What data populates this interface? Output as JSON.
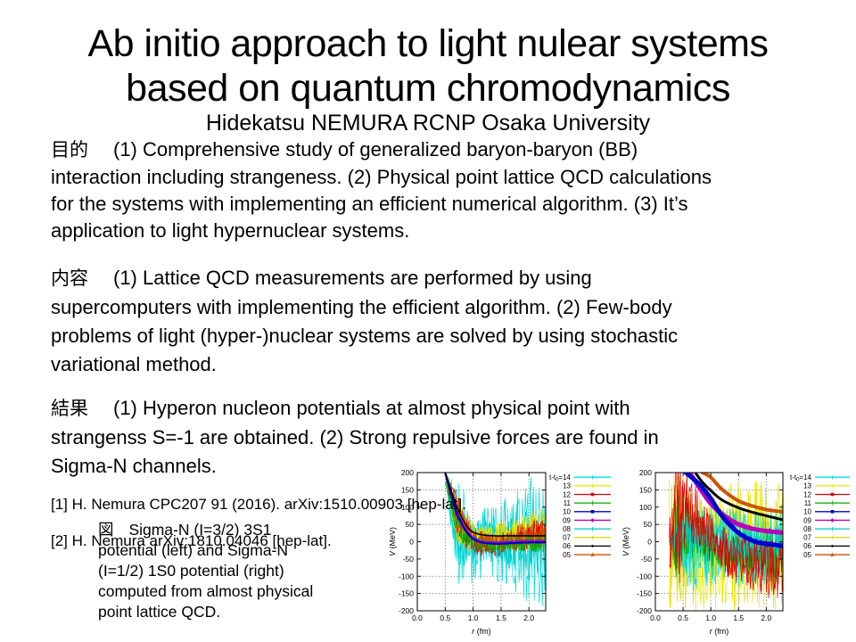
{
  "slide": {
    "title_line1": "Ab initio approach to light nulear systems",
    "title_line2": "based on quantum chromodynamics",
    "author": "Hidekatsu NEMURA RCNP Osaka University",
    "sections": [
      {
        "label": "目的",
        "lines": [
          "(1) Comprehensive study of generalized baryon-baryon (BB)",
          "interaction including strangeness. (2) Physical point lattice QCD calculations",
          "for the systems with implementing an efficient numerical algorithm. (3) It’s",
          "application to light hypernuclear systems."
        ]
      },
      {
        "label": "内容",
        "lines": [
          "(1) Lattice QCD measurements are performed by using",
          "supercomputers with implementing the efficient algorithm. (2) Few-body",
          "problems of light (hyper-)nuclear systems are solved by using stochastic",
          "variational method."
        ]
      },
      {
        "label": "結果",
        "lines": [
          "(1) Hyperon nucleon potentials at almost physical point with",
          "strangenss S=-1 are obtained. (2) Strong repulsive forces are found in",
          "Sigma-N channels."
        ]
      }
    ],
    "references": [
      "[1] H. Nemura CPC207 91 (2016). arXiv:1510.00903 [hep-lat].",
      "[2] H. Nemura arXiv:1810.04046 [hep-lat]."
    ],
    "figure_caption": {
      "label": "図",
      "lines": [
        "Sigma-N (I=3/2) 3S1",
        "potential (left) and Sigma-N",
        "(I=1/2) 1S0 potential (right)",
        "computed from almost physical",
        "point lattice QCD."
      ]
    }
  },
  "chart_data": [
    {
      "type": "line",
      "title": "Sigma-N (I=3/2) 3S1 potential",
      "xlabel": "r (fm)",
      "ylabel": "V (MeV)",
      "xlim": [
        0.0,
        2.3
      ],
      "ylim": [
        -200,
        200
      ],
      "xticks": [
        0.0,
        0.5,
        1.0,
        1.5,
        2.0
      ],
      "yticks": [
        200,
        150,
        100,
        50,
        0,
        -50,
        -100,
        -150,
        -200
      ],
      "grid": true,
      "grid_v": [
        150,
        50,
        -100,
        -150
      ],
      "grid_r": [
        0.5,
        1.0,
        1.5,
        2.0
      ],
      "legend_position": "right-outside",
      "legend": [
        {
          "label": "t-t₀=14",
          "color": "#00dcdc",
          "marker": "plus"
        },
        {
          "label": "13",
          "color": "#e6e600",
          "marker": "plus"
        },
        {
          "label": "12",
          "color": "#dd0000",
          "marker": "square"
        },
        {
          "label": "11",
          "color": "#00aa00",
          "marker": "plus"
        },
        {
          "label": "10",
          "color": "#0000cc",
          "marker": "square"
        },
        {
          "label": "09",
          "color": "#bb00bb",
          "marker": "diamond"
        },
        {
          "label": "08",
          "color": "#00c8c8",
          "marker": "plus"
        },
        {
          "label": "07",
          "color": "#d8d800",
          "marker": "plus"
        },
        {
          "label": "06",
          "color": "#000000",
          "marker": "dot"
        },
        {
          "label": "05",
          "color": "#cc5500",
          "marker": "triangle"
        }
      ],
      "series": [
        {
          "name": "14",
          "color": "#00dcdc",
          "style": "noise",
          "r": [
            0.5,
            0.7,
            0.9,
            1.1,
            1.4,
            1.7,
            2.0,
            2.3
          ],
          "v": [
            200,
            30,
            0,
            -5,
            -5,
            0,
            0,
            0
          ],
          "noise": [
            5,
            160,
            130,
            105,
            105,
            150,
            195,
            195
          ]
        },
        {
          "name": "08",
          "color": "#00c8c8",
          "style": "noise",
          "r": [
            0.5,
            0.7,
            0.9,
            1.1,
            1.4,
            1.7,
            2.0,
            2.3
          ],
          "v": [
            200,
            40,
            5,
            0,
            -5,
            0,
            0,
            0
          ],
          "noise": [
            5,
            110,
            85,
            65,
            55,
            75,
            95,
            95
          ]
        },
        {
          "name": "13",
          "color": "#e6e600",
          "style": "noise",
          "r": [
            0.5,
            0.7,
            0.9,
            1.1,
            1.4,
            1.7,
            2.0,
            2.3
          ],
          "v": [
            200,
            60,
            25,
            15,
            15,
            20,
            30,
            35
          ],
          "noise": [
            5,
            70,
            55,
            45,
            40,
            50,
            60,
            60
          ]
        },
        {
          "name": "07",
          "color": "#d8d800",
          "style": "noise",
          "r": [
            0.5,
            0.7,
            0.9,
            1.1,
            1.4,
            1.7,
            2.0,
            2.3
          ],
          "v": [
            200,
            55,
            20,
            10,
            10,
            15,
            25,
            30
          ],
          "noise": [
            5,
            55,
            42,
            35,
            32,
            38,
            45,
            45
          ]
        },
        {
          "name": "12",
          "color": "#dd0000",
          "style": "noise",
          "r": [
            0.5,
            0.7,
            0.9,
            1.1,
            1.4,
            1.7,
            2.0,
            2.3
          ],
          "v": [
            200,
            80,
            20,
            -5,
            -10,
            0,
            18,
            24
          ],
          "noise": [
            8,
            60,
            45,
            38,
            34,
            38,
            45,
            45
          ]
        },
        {
          "name": "05",
          "color": "#cc5500",
          "style": "noise",
          "r": [
            0.5,
            0.7,
            0.9,
            1.1,
            1.4,
            1.7,
            2.0,
            2.3
          ],
          "v": [
            200,
            95,
            30,
            5,
            0,
            5,
            12,
            15
          ],
          "noise": [
            15,
            40,
            28,
            22,
            20,
            22,
            28,
            28
          ]
        },
        {
          "name": "11",
          "color": "#00aa00",
          "style": "noise",
          "r": [
            0.5,
            0.7,
            0.9,
            1.1,
            1.4,
            1.7,
            2.0,
            2.3
          ],
          "v": [
            180,
            50,
            5,
            -10,
            -12,
            -8,
            -5,
            -5
          ],
          "noise": [
            8,
            38,
            28,
            22,
            20,
            22,
            26,
            26
          ]
        },
        {
          "name": "09",
          "color": "#bb00bb",
          "style": "smooth",
          "lw": 2.2,
          "r": [
            0.5,
            0.7,
            0.9,
            1.1,
            1.4,
            1.7,
            2.0,
            2.3
          ],
          "v": [
            200,
            90,
            28,
            2,
            -2,
            0,
            2,
            2
          ],
          "noise": [
            0,
            6,
            5,
            4,
            3,
            3,
            4,
            4
          ]
        },
        {
          "name": "10",
          "color": "#0000cc",
          "style": "smooth",
          "lw": 2.2,
          "r": [
            0.5,
            0.7,
            0.9,
            1.1,
            1.4,
            1.7,
            2.0,
            2.3
          ],
          "v": [
            200,
            85,
            25,
            0,
            -6,
            -4,
            -2,
            -2
          ],
          "noise": [
            0,
            5,
            4,
            3,
            3,
            3,
            3,
            3
          ]
        },
        {
          "name": "06",
          "color": "#000000",
          "style": "smooth",
          "lw": 1.6,
          "r": [
            0.5,
            0.7,
            0.9,
            1.1,
            1.4,
            1.7,
            2.0,
            2.3
          ],
          "v": [
            200,
            105,
            42,
            22,
            17,
            17,
            17,
            17
          ],
          "noise": [
            0,
            0,
            0,
            0,
            0,
            0,
            0,
            0
          ]
        }
      ]
    },
    {
      "type": "line",
      "title": "Sigma-N (I=1/2) 1S0 potential",
      "xlabel": "r (fm)",
      "ylabel": "V (MeV)",
      "xlim": [
        0.0,
        2.3
      ],
      "ylim": [
        -200,
        200
      ],
      "xticks": [
        0.0,
        0.5,
        1.0,
        1.5,
        2.0
      ],
      "yticks": [
        200,
        150,
        100,
        50,
        0,
        -50,
        -100,
        -150,
        -200
      ],
      "grid": true,
      "grid_v": [
        150,
        50,
        -100,
        -150
      ],
      "grid_r": [
        0.5,
        1.0,
        1.5,
        2.0
      ],
      "legend_position": "right-outside",
      "legend": [
        {
          "label": "t-t₀=14",
          "color": "#00dcdc",
          "marker": "plus"
        },
        {
          "label": "13",
          "color": "#e6e600",
          "marker": "plus"
        },
        {
          "label": "12",
          "color": "#dd0000",
          "marker": "square"
        },
        {
          "label": "11",
          "color": "#00aa00",
          "marker": "plus"
        },
        {
          "label": "10",
          "color": "#0000cc",
          "marker": "square"
        },
        {
          "label": "09",
          "color": "#bb00bb",
          "marker": "diamond"
        },
        {
          "label": "08",
          "color": "#00c8c8",
          "marker": "plus"
        },
        {
          "label": "07",
          "color": "#d8d800",
          "marker": "plus"
        },
        {
          "label": "06",
          "color": "#000000",
          "marker": "dot"
        },
        {
          "label": "05",
          "color": "#cc5500",
          "marker": "triangle"
        }
      ],
      "series": [
        {
          "name": "13",
          "color": "#e6e600",
          "style": "noise",
          "r": [
            0.25,
            0.4,
            0.6,
            0.8,
            1.0,
            1.3,
            1.6,
            2.0,
            2.3
          ],
          "v": [
            0,
            0,
            -5,
            -10,
            -10,
            -10,
            -10,
            -10,
            -10
          ],
          "noise": [
            200,
            200,
            200,
            195,
            190,
            190,
            190,
            190,
            190
          ]
        },
        {
          "name": "07",
          "color": "#d8d800",
          "style": "noise",
          "r": [
            0.25,
            0.4,
            0.6,
            0.8,
            1.0,
            1.3,
            1.6,
            2.0,
            2.3
          ],
          "v": [
            0,
            0,
            10,
            20,
            10,
            0,
            -5,
            -5,
            -5
          ],
          "noise": [
            0,
            160,
            140,
            120,
            110,
            110,
            110,
            115,
            115
          ]
        },
        {
          "name": "14",
          "color": "#00dcdc",
          "style": "noise",
          "r": [
            0.25,
            0.4,
            0.6,
            0.8,
            1.0,
            1.3,
            1.6,
            2.0,
            2.3
          ],
          "v": [
            0,
            -5,
            -10,
            -15,
            -15,
            -15,
            -15,
            -15,
            -15
          ],
          "noise": [
            0,
            60,
            140,
            130,
            120,
            115,
            115,
            120,
            120
          ]
        },
        {
          "name": "11",
          "color": "#00aa00",
          "style": "noise",
          "r": [
            0.25,
            0.4,
            0.6,
            0.8,
            1.0,
            1.3,
            1.6,
            2.0,
            2.3
          ],
          "v": [
            0,
            30,
            40,
            10,
            -15,
            -30,
            -40,
            -40,
            -40
          ],
          "noise": [
            0,
            150,
            90,
            70,
            60,
            58,
            60,
            70,
            70
          ]
        },
        {
          "name": "08",
          "color": "#00c8c8",
          "style": "noise",
          "r": [
            0.25,
            0.4,
            0.6,
            0.8,
            1.0,
            1.3,
            1.6,
            2.0,
            2.3
          ],
          "v": [
            0,
            0,
            25,
            20,
            5,
            -5,
            -8,
            -8,
            -8
          ],
          "noise": [
            0,
            70,
            65,
            55,
            50,
            50,
            50,
            55,
            55
          ]
        },
        {
          "name": "12",
          "color": "#dd0000",
          "style": "noise",
          "r": [
            0.25,
            0.4,
            0.6,
            0.8,
            1.0,
            1.3,
            1.6,
            2.0,
            2.3
          ],
          "v": [
            0,
            50,
            100,
            60,
            10,
            -35,
            -60,
            -75,
            -80
          ],
          "noise": [
            120,
            200,
            100,
            80,
            70,
            68,
            75,
            90,
            90
          ]
        },
        {
          "name": "09",
          "color": "#bb00bb",
          "style": "smooth",
          "lw": 5,
          "r": [
            0.62,
            0.8,
            1.0,
            1.2,
            1.5,
            1.8,
            2.0,
            2.3
          ],
          "v": [
            200,
            155,
            110,
            80,
            50,
            36,
            31,
            26
          ],
          "noise": [
            8,
            10,
            10,
            10,
            9,
            8,
            8,
            8
          ]
        },
        {
          "name": "10",
          "color": "#0000cc",
          "style": "smooth",
          "lw": 5,
          "r": [
            0.55,
            0.8,
            1.0,
            1.2,
            1.5,
            1.8,
            2.0,
            2.3
          ],
          "v": [
            200,
            165,
            125,
            75,
            25,
            0,
            -6,
            -12
          ],
          "noise": [
            8,
            12,
            12,
            12,
            10,
            10,
            10,
            10
          ]
        },
        {
          "name": "06",
          "color": "#000000",
          "style": "smooth",
          "lw": 3,
          "r": [
            0.72,
            0.85,
            1.0,
            1.2,
            1.5,
            1.8,
            2.0,
            2.3
          ],
          "v": [
            200,
            172,
            148,
            121,
            98,
            83,
            75,
            63
          ],
          "noise": [
            0,
            0,
            0,
            0,
            0,
            0,
            0,
            0
          ]
        },
        {
          "name": "05",
          "color": "#cc5500",
          "style": "smooth",
          "lw": 4,
          "r": [
            0.85,
            1.0,
            1.2,
            1.5,
            1.8,
            2.0,
            2.3
          ],
          "v": [
            200,
            186,
            152,
            118,
            101,
            93,
            86
          ],
          "noise": [
            0,
            0,
            0,
            0,
            0,
            0,
            0
          ]
        }
      ]
    }
  ]
}
